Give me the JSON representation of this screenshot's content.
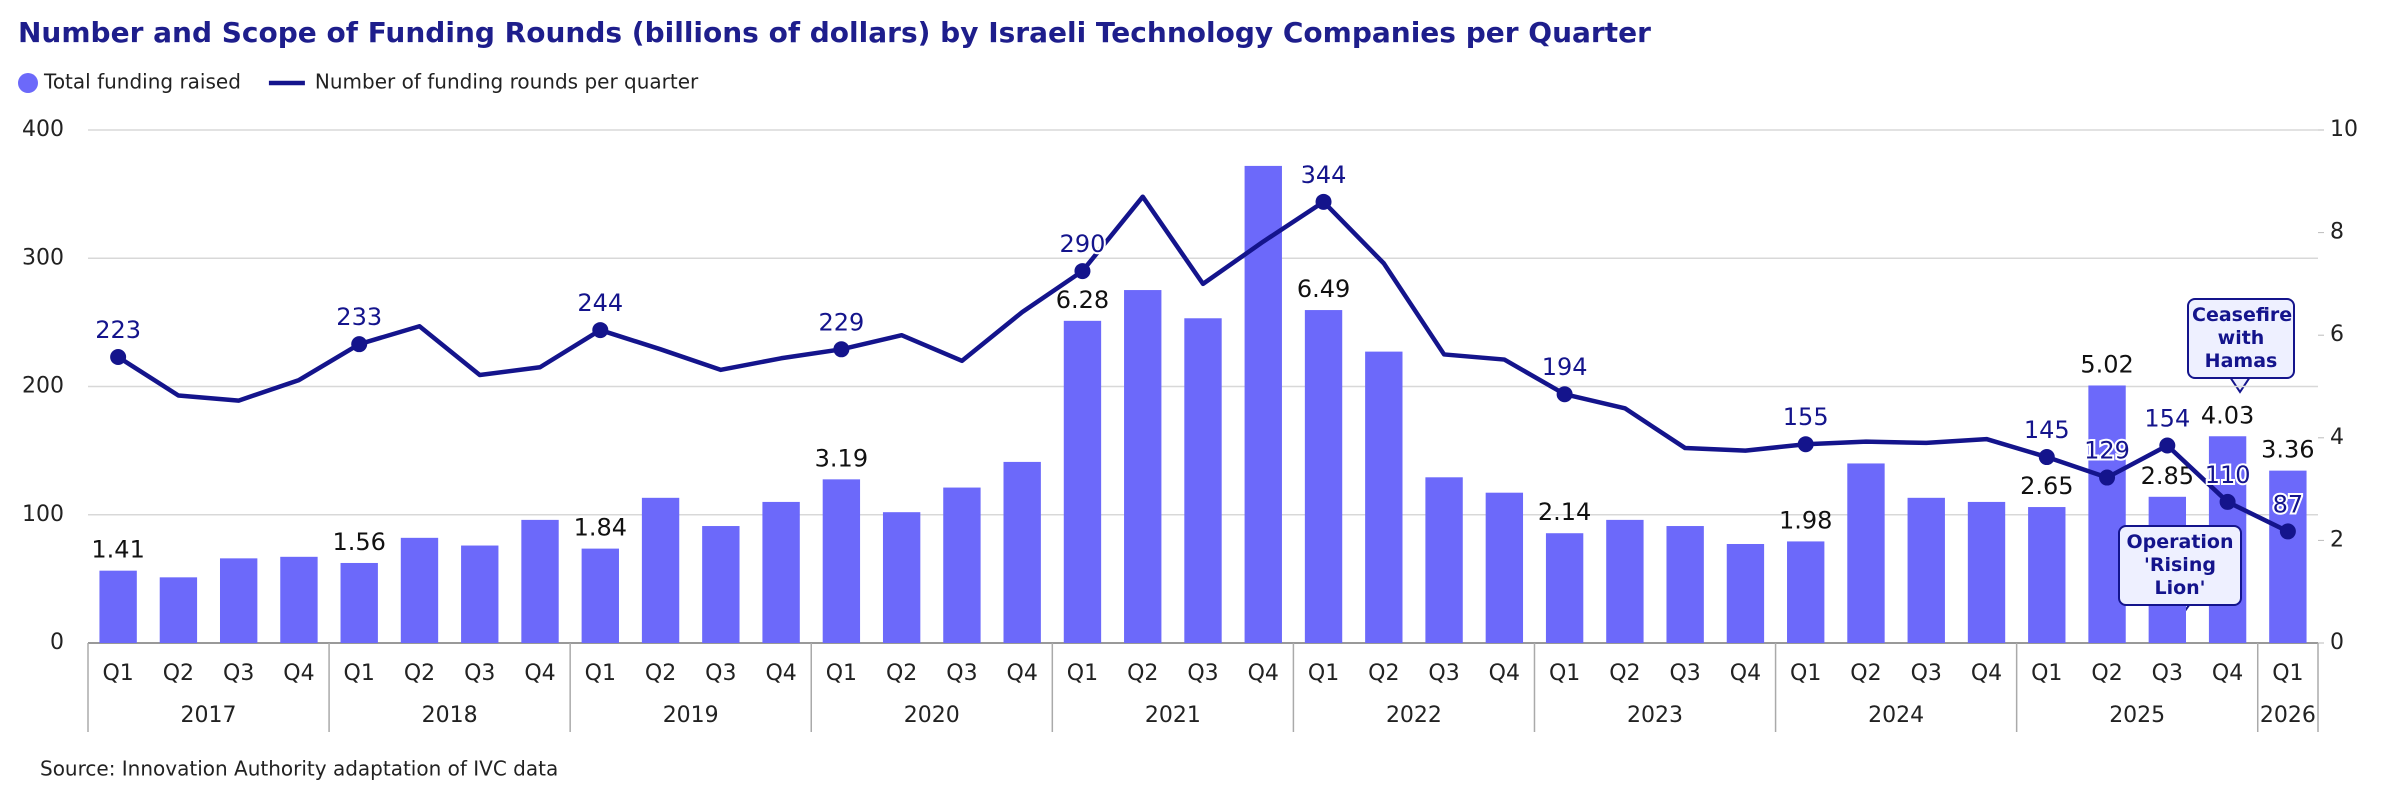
{
  "chart_data": {
    "type": "bar-line",
    "title": "Number and Scope of Funding Rounds (billions of dollars) by Israeli Technology Companies per Quarter",
    "source": "Source: Innovation Authority adaptation of IVC data",
    "categories": [
      "Q1",
      "Q2",
      "Q3",
      "Q4",
      "Q1",
      "Q2",
      "Q3",
      "Q4",
      "Q1",
      "Q2",
      "Q3",
      "Q4",
      "Q1",
      "Q2",
      "Q3",
      "Q4",
      "Q1",
      "Q2",
      "Q3",
      "Q4",
      "Q1",
      "Q2",
      "Q3",
      "Q4",
      "Q1",
      "Q2",
      "Q3",
      "Q4",
      "Q1",
      "Q2",
      "Q3",
      "Q4",
      "Q1",
      "Q2",
      "Q3",
      "Q4",
      "Q1"
    ],
    "group_labels": [
      "2017",
      null,
      null,
      null,
      "2018",
      null,
      null,
      null,
      "2019",
      null,
      null,
      null,
      "2020",
      null,
      null,
      null,
      "2021",
      null,
      null,
      null,
      "2022",
      null,
      null,
      null,
      "2023",
      null,
      null,
      null,
      "2024",
      null,
      null,
      null,
      "2025",
      null,
      null,
      null,
      "2026"
    ],
    "ylim": [
      0,
      400
    ],
    "yticks": [
      0,
      100,
      200,
      300,
      400
    ],
    "y2lim": [
      0,
      10
    ],
    "y2ticks": [
      0,
      2,
      4,
      6,
      8,
      10
    ],
    "grid": true,
    "series": [
      {
        "name": "Total funding raised",
        "type": "bar",
        "axis": "y2",
        "color": "#6c69fa",
        "values": [
          1.41,
          1.28,
          1.65,
          1.68,
          1.56,
          2.05,
          1.9,
          2.4,
          1.84,
          2.83,
          2.28,
          2.75,
          3.19,
          2.55,
          3.03,
          3.53,
          6.28,
          6.88,
          6.33,
          9.3,
          6.49,
          5.68,
          3.23,
          2.93,
          2.14,
          2.4,
          2.28,
          1.93,
          1.98,
          3.5,
          2.83,
          2.75,
          2.65,
          5.02,
          2.85,
          4.03,
          3.36
        ],
        "value_labels": [
          "1.41",
          null,
          null,
          null,
          "1.56",
          null,
          null,
          null,
          "1.84",
          null,
          null,
          null,
          "3.19",
          null,
          null,
          null,
          "6.28",
          null,
          null,
          null,
          "6.49",
          null,
          null,
          null,
          "2.14",
          null,
          null,
          null,
          "1.98",
          null,
          null,
          null,
          "2.65",
          "5.02",
          "2.85",
          "4.03",
          "3.36"
        ]
      },
      {
        "name": "Number of funding rounds per quarter",
        "type": "line",
        "axis": "y",
        "color": "#14148c",
        "values": [
          223,
          193,
          189,
          205,
          233,
          247,
          209,
          215,
          244,
          229,
          213,
          222,
          229,
          240,
          220,
          258,
          290,
          348,
          280,
          313,
          344,
          296,
          225,
          221,
          194,
          183,
          152,
          150,
          155,
          157,
          156,
          159,
          145,
          129,
          154,
          110,
          87
        ],
        "value_labels": [
          "223",
          null,
          null,
          null,
          "233",
          null,
          null,
          null,
          "244",
          null,
          null,
          null,
          "229",
          null,
          null,
          null,
          "290",
          null,
          null,
          null,
          "344",
          null,
          null,
          null,
          "194",
          null,
          null,
          null,
          "155",
          null,
          null,
          null,
          "145",
          "129",
          "154",
          "110",
          "87"
        ]
      }
    ],
    "annotations": [
      {
        "text": "Ceasefire with Hamas"
      },
      {
        "text": "Operation 'Rising Lion'"
      }
    ]
  }
}
